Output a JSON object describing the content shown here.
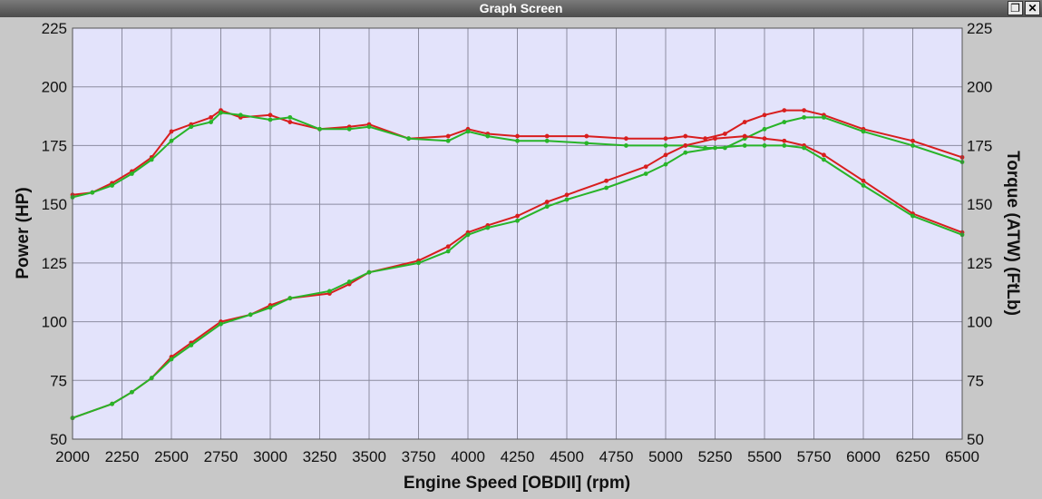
{
  "window": {
    "title": "Graph Screen",
    "restore_icon": "restore-window-icon",
    "close_icon": "close-x-icon",
    "restore_glyph": "❐",
    "close_glyph": "✕"
  },
  "colors": {
    "plot_bg": "#e3e3fb",
    "grid": "#8c8ca0",
    "run1": "#d81e1e",
    "run2": "#28b428",
    "frame": "#c8c8c8"
  },
  "chart_data": {
    "type": "line",
    "xlabel": "Engine Speed [OBDII] (rpm)",
    "ylabel_left": "Power (HP)",
    "ylabel_right": "Torque (ATW) (FtLb)",
    "xlim": [
      2000,
      6500
    ],
    "ylim_left": [
      50,
      225
    ],
    "ylim_right": [
      50,
      225
    ],
    "x_ticks": [
      2000,
      2250,
      2500,
      2750,
      3000,
      3250,
      3500,
      3750,
      4000,
      4250,
      4500,
      4750,
      5000,
      5250,
      5500,
      5750,
      6000,
      6250,
      6500
    ],
    "y_ticks_left": [
      50,
      75,
      100,
      125,
      150,
      175,
      200,
      225
    ],
    "y_ticks_right": [
      50,
      75,
      100,
      125,
      150,
      175,
      200,
      225
    ],
    "grid": true,
    "legend": "none",
    "series": [
      {
        "axis": "right",
        "color": "#d81e1e",
        "x": [
          2000,
          2100,
          2200,
          2300,
          2400,
          2500,
          2600,
          2700,
          2750,
          2850,
          3000,
          3100,
          3250,
          3400,
          3500,
          3700,
          3900,
          4000,
          4100,
          4250,
          4400,
          4600,
          4800,
          5000,
          5100,
          5200,
          5300,
          5400,
          5500,
          5600,
          5700,
          5800,
          6000,
          6250,
          6500
        ],
        "y": [
          154,
          155,
          159,
          164,
          170,
          181,
          184,
          187,
          190,
          187,
          188,
          185,
          182,
          183,
          184,
          178,
          179,
          182,
          180,
          179,
          179,
          179,
          178,
          178,
          179,
          178,
          180,
          185,
          188,
          190,
          190,
          188,
          182,
          177,
          170
        ]
      },
      {
        "axis": "right",
        "color": "#28b428",
        "x": [
          2000,
          2100,
          2200,
          2300,
          2400,
          2500,
          2600,
          2700,
          2750,
          2850,
          3000,
          3100,
          3250,
          3400,
          3500,
          3700,
          3900,
          4000,
          4100,
          4250,
          4400,
          4600,
          4800,
          5000,
          5100,
          5200,
          5300,
          5400,
          5500,
          5600,
          5700,
          5800,
          6000,
          6250,
          6500
        ],
        "y": [
          153,
          155,
          158,
          163,
          169,
          177,
          183,
          185,
          189,
          188,
          186,
          187,
          182,
          182,
          183,
          178,
          177,
          181,
          179,
          177,
          177,
          176,
          175,
          175,
          175,
          174,
          174,
          178,
          182,
          185,
          187,
          187,
          181,
          175,
          168
        ]
      },
      {
        "axis": "left",
        "color": "#d81e1e",
        "x": [
          2000,
          2200,
          2300,
          2400,
          2500,
          2600,
          2750,
          2900,
          3000,
          3100,
          3300,
          3400,
          3500,
          3750,
          3900,
          4000,
          4100,
          4250,
          4400,
          4500,
          4700,
          4900,
          5000,
          5100,
          5250,
          5400,
          5500,
          5600,
          5700,
          5800,
          6000,
          6250,
          6500
        ],
        "y": [
          59,
          65,
          70,
          76,
          85,
          91,
          100,
          103,
          107,
          110,
          112,
          116,
          121,
          126,
          132,
          138,
          141,
          145,
          151,
          154,
          160,
          166,
          171,
          175,
          178,
          179,
          178,
          177,
          175,
          171,
          160,
          146,
          138
        ]
      },
      {
        "axis": "left",
        "color": "#28b428",
        "x": [
          2000,
          2200,
          2300,
          2400,
          2500,
          2600,
          2750,
          2900,
          3000,
          3100,
          3300,
          3400,
          3500,
          3750,
          3900,
          4000,
          4100,
          4250,
          4400,
          4500,
          4700,
          4900,
          5000,
          5100,
          5250,
          5400,
          5500,
          5600,
          5700,
          5800,
          6000,
          6250,
          6500
        ],
        "y": [
          59,
          65,
          70,
          76,
          84,
          90,
          99,
          103,
          106,
          110,
          113,
          117,
          121,
          125,
          130,
          137,
          140,
          143,
          149,
          152,
          157,
          163,
          167,
          172,
          174,
          175,
          175,
          175,
          174,
          169,
          158,
          145,
          137
        ]
      }
    ]
  }
}
